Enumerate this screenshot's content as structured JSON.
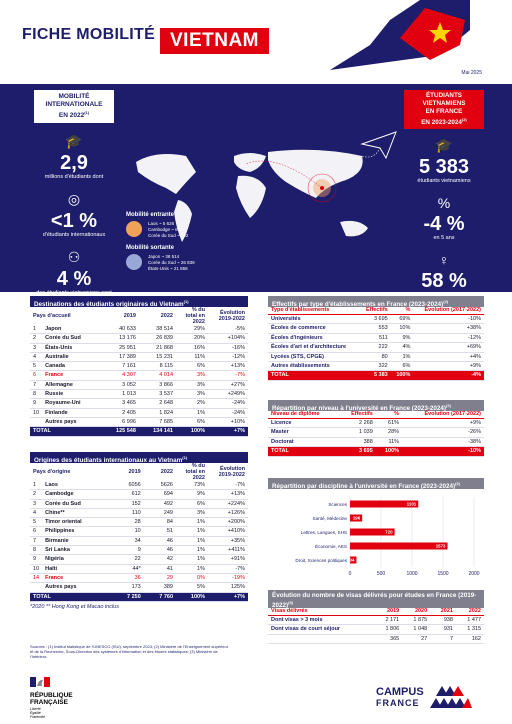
{
  "header": {
    "title": "FICHE MOBILITÉ",
    "country": "VIETNAM",
    "date": "Mai 2025"
  },
  "left_panel": {
    "badge": [
      "MOBILITÉ",
      "INTERNATIONALE",
      "EN 2022"
    ],
    "badge_sup": "(1)",
    "stats": [
      {
        "value": "2,9",
        "label": "millions d'étudiants dont",
        "icon": "graduation-cap-icon"
      },
      {
        "value": "<1 %",
        "label": "d'étudiants internationaux",
        "icon": "globe-icon"
      },
      {
        "value": "4 %",
        "label": "des étudiants vietnamiens sont mobiles",
        "icon": "people-icon"
      }
    ]
  },
  "right_panel": {
    "badge": [
      "ÉTUDIANTS",
      "VIETNAMIENS",
      "EN FRANCE",
      "EN 2023-2024"
    ],
    "badge_sup": "(2)",
    "stats": [
      {
        "value": "5 383",
        "label": "étudiants vietnamiens",
        "icon": "graduation-cap-icon"
      },
      {
        "value": "-4 %",
        "label": "en 5 ans",
        "icon": "percent-icon"
      },
      {
        "value": "58 %",
        "label": "d'étudiantes",
        "icon": "female-icon"
      }
    ]
  },
  "map_legend": {
    "entrante": {
      "title": "Mobilité entrante",
      "lines": [
        "Laos ~ 5 626",
        "Cambodge ~ 694",
        "Corée du Sud ~ 492"
      ],
      "color": "#f0a25a"
    },
    "sortante": {
      "title": "Mobilité sortante",
      "lines": [
        "Japon ~ 38 514",
        "Corée du Sud ~ 26 839",
        "États-Unis ~ 21 868"
      ],
      "color": "#9aa8d8"
    }
  },
  "destinations": {
    "title": "Destinations des étudiants originaires du Vietnam",
    "title_sup": "(1)",
    "headers": [
      "Pays d'accueil",
      "2019",
      "2022",
      "% du total en 2022",
      "Évolution 2019-2022"
    ],
    "rows": [
      [
        "1",
        "Japon",
        "40 633",
        "38 514",
        "29%",
        "-5%"
      ],
      [
        "2",
        "Corée du Sud",
        "13 176",
        "26 839",
        "20%",
        "+104%"
      ],
      [
        "3",
        "États-Unis",
        "25 951",
        "21 868",
        "16%",
        "-16%"
      ],
      [
        "4",
        "Australie",
        "17 389",
        "15 231",
        "11%",
        "-12%"
      ],
      [
        "5",
        "Canada",
        "7 161",
        "8 115",
        "6%",
        "+13%"
      ],
      [
        "6",
        "France",
        "4 307",
        "4 014",
        "3%",
        "-7%"
      ],
      [
        "7",
        "Allemagne",
        "3 052",
        "3 866",
        "3%",
        "+27%"
      ],
      [
        "8",
        "Russie",
        "1 013",
        "3 537",
        "3%",
        "+249%"
      ],
      [
        "9",
        "Royaume-Uni",
        "3 465",
        "2 648",
        "2%",
        "-24%"
      ],
      [
        "10",
        "Finlande",
        "2 405",
        "1 824",
        "1%",
        "-24%"
      ],
      [
        "",
        "Autres pays",
        "6 996",
        "7 685",
        "6%",
        "+10%"
      ]
    ],
    "total": [
      "TOTAL",
      "125 548",
      "134 141",
      "100%",
      "+7%"
    ]
  },
  "origines": {
    "title": "Origines des étudiants internationaux au Vietnam",
    "title_sup": "(1)",
    "headers": [
      "Pays d'origine",
      "2019",
      "2022",
      "% du total en 2022",
      "Évolution 2019-2022"
    ],
    "rows": [
      [
        "1",
        "Laos",
        "6056",
        "5626",
        "73%",
        "-7%"
      ],
      [
        "2",
        "Cambodge",
        "612",
        "694",
        "9%",
        "+13%"
      ],
      [
        "3",
        "Corée du Sud",
        "152",
        "492",
        "6%",
        "+224%"
      ],
      [
        "4",
        "Chine**",
        "110",
        "249",
        "3%",
        "+126%"
      ],
      [
        "5",
        "Timor oriental",
        "28",
        "84",
        "1%",
        "+200%"
      ],
      [
        "6",
        "Philippines",
        "10",
        "51",
        "1%",
        "+410%"
      ],
      [
        "7",
        "Birmanie",
        "34",
        "46",
        "1%",
        "+35%"
      ],
      [
        "8",
        "Sri Lanka",
        "9",
        "46",
        "1%",
        "+411%"
      ],
      [
        "9",
        "Nigéria",
        "22",
        "42",
        "1%",
        "+91%"
      ],
      [
        "10",
        "Haïti",
        "44*",
        "41",
        "1%",
        "-7%"
      ],
      [
        "14",
        "France",
        "36",
        "29",
        "0%",
        "-19%"
      ],
      [
        "",
        "Autres pays",
        "173",
        "389",
        "5%",
        "125%"
      ]
    ],
    "total": [
      "TOTAL",
      "7 250",
      "7 760",
      "100%",
      "+7%"
    ]
  },
  "footnote": "*2020  ** Hong Kong et Macao inclus",
  "effectifs": {
    "title": "Effectifs par type d'établissements en France (2023-2024)",
    "title_sup": "(2)",
    "headers": [
      "Type d'établissements",
      "Effectifs",
      "%",
      "Évolution (2017-2022)"
    ],
    "rows": [
      [
        "Universités",
        "3 695",
        "69%",
        "-10%"
      ],
      [
        "Écoles de commerce",
        "553",
        "10%",
        "+38%"
      ],
      [
        "Écoles d'ingénieurs",
        "511",
        "9%",
        "-12%"
      ],
      [
        "Écoles d'art et d'architecture",
        "222",
        "4%",
        "+69%"
      ],
      [
        "Lycées (STS, CPGE)",
        "80",
        "1%",
        "+4%"
      ],
      [
        "Autres établissements",
        "322",
        "6%",
        "+9%"
      ]
    ],
    "total": [
      "TOTAL",
      "5 383",
      "100%",
      "-4%"
    ]
  },
  "niveau": {
    "title": "Répartition par niveau à l'université en France (2023-2024)",
    "title_sup": "(2)",
    "headers": [
      "Niveau de diplôme",
      "Effectifs",
      "%",
      "Évolution (2017-2022)"
    ],
    "rows": [
      [
        "Licence",
        "2 268",
        "61%",
        "+9%"
      ],
      [
        "Master",
        "1 039",
        "28%",
        "-26%"
      ],
      [
        "Doctorat",
        "388",
        "11%",
        "-38%"
      ]
    ],
    "total": [
      "TOTAL",
      "3 695",
      "100%",
      "-10%"
    ]
  },
  "chart_data": {
    "type": "bar",
    "orientation": "horizontal",
    "title": "Répartition par discipline à l'université en France (2023-2024)",
    "title_sup": "(2)",
    "categories": [
      "Sciences",
      "Santé, Médecine",
      "Lettres, Langues, SHS",
      "Économie, AES",
      "Droit, Sciences politiques"
    ],
    "values": [
      1101,
      196,
      720,
      1573,
      104
    ],
    "xlim": [
      0,
      2000
    ],
    "xticks": [
      "0",
      "500",
      "1000",
      "1500",
      "2000"
    ],
    "grid": true,
    "color": "#e1000f"
  },
  "visas": {
    "title": "Évolution du nombre de visas délivrés pour études en France (2019-2022)",
    "title_sup": "(3)",
    "headers": [
      "Visas délivrés",
      "2019",
      "2020",
      "2021",
      "2022"
    ],
    "rows": [
      [
        "Dont visas > 3 mois",
        "2 171",
        "1 875",
        "938",
        "1 477"
      ],
      [
        "Dont visas de court séjour",
        "1 806",
        "1 048",
        "931",
        "1 315"
      ],
      [
        "",
        "365",
        "27",
        "7",
        "162"
      ]
    ]
  },
  "sources": "Sources : (1) Institut statistique de l'UNESCO (ISU), septembre 2024; (2) Ministère de l'Enseignement supérieur et de la Recherche, Sous-Direction des systèmes d'information et des études statistiques; (3) Ministère de l'Intérieur.",
  "logos": {
    "republique": [
      "RÉPUBLIQUE",
      "FRANÇAISE"
    ],
    "motto": [
      "Liberté",
      "Égalité",
      "Fraternité"
    ],
    "campus": [
      "CAMPUS",
      "FRANCE"
    ]
  },
  "colors": {
    "navy": "#1d1d6b",
    "red": "#e1000f",
    "grey": "#7f7f8e"
  }
}
